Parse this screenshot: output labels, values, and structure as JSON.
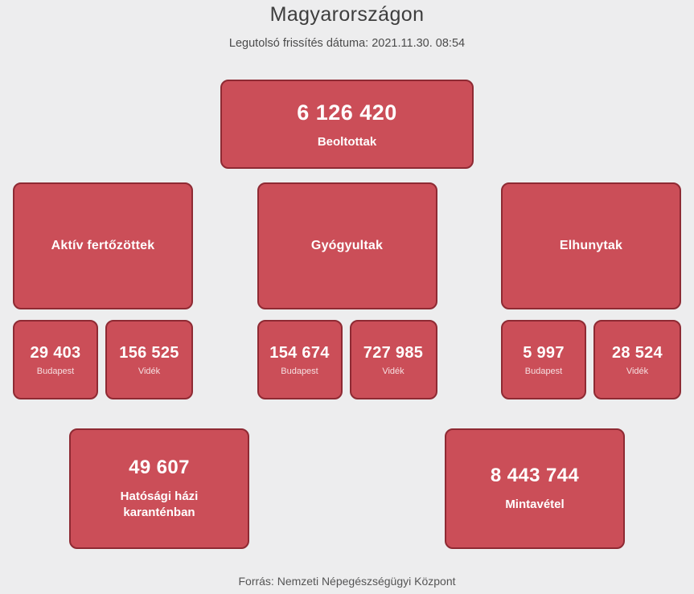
{
  "page": {
    "title": "Magyarországon",
    "subtitle": "Legutolsó frissítés dátuma: 2021.11.30. 08:54",
    "footer": "Forrás: Nemzeti Népegészségügyi Központ"
  },
  "colors": {
    "bg": "#ededee",
    "card-fill": "#cb4e58",
    "card-border": "#8e2a33",
    "card-text": "#ffffff",
    "title-text": "#3e3e3e",
    "subtitle-text": "#4b4b4b",
    "footer-text": "#555555"
  },
  "cards": {
    "vaccinated": {
      "value": "6 126 420",
      "label": "Beoltottak"
    },
    "quarantine": {
      "value": "49 607",
      "label": "Hatósági házi karanténban"
    },
    "samples": {
      "value": "8 443 744",
      "label": "Mintavétel"
    }
  },
  "columns": [
    {
      "title": "Aktív fertőzöttek",
      "budapest": {
        "value": "29 403",
        "label": "Budapest"
      },
      "videk": {
        "value": "156 525",
        "label": "Vidék"
      }
    },
    {
      "title": "Gyógyultak",
      "budapest": {
        "value": "154 674",
        "label": "Budapest"
      },
      "videk": {
        "value": "727 985",
        "label": "Vidék"
      }
    },
    {
      "title": "Elhunytak",
      "budapest": {
        "value": "5 997",
        "label": "Budapest"
      },
      "videk": {
        "value": "28 524",
        "label": "Vidék"
      }
    }
  ]
}
